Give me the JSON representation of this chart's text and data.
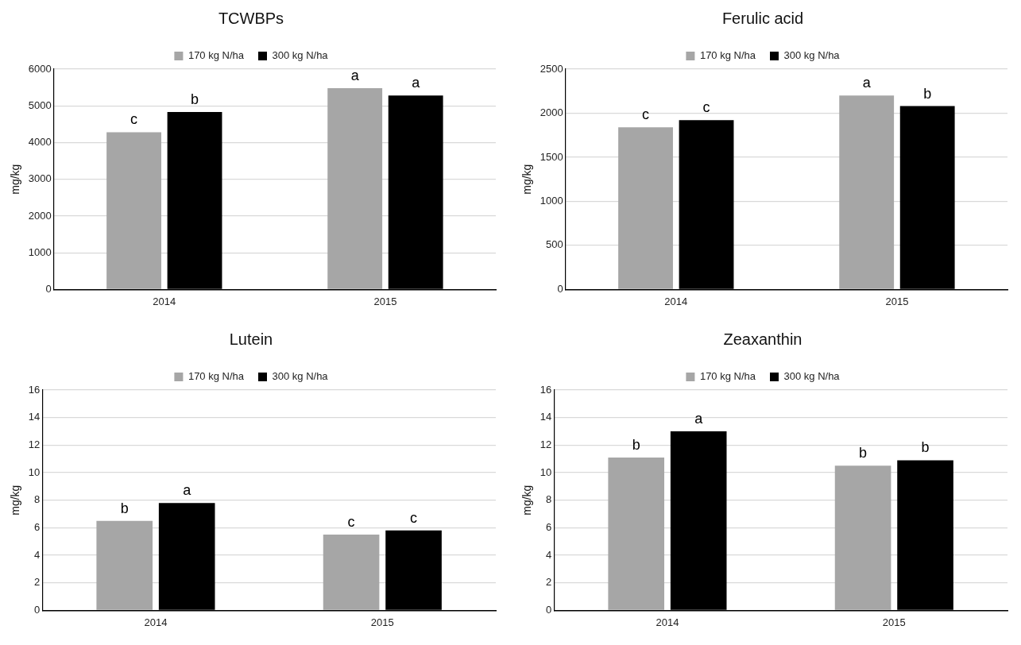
{
  "chart_data": [
    {
      "type": "bar",
      "title": "TCWBPs",
      "ylabel": "mg/kg",
      "categories": [
        "2014",
        "2015"
      ],
      "series": [
        {
          "name": "170 kg N/ha",
          "color": "#a6a6a6",
          "values": [
            4280,
            5480
          ]
        },
        {
          "name": "300 kg N/ha",
          "color": "#000000",
          "values": [
            4830,
            5280
          ]
        }
      ],
      "ylim": [
        0,
        6000
      ],
      "yticks": [
        0,
        1000,
        2000,
        3000,
        4000,
        5000,
        6000
      ],
      "grid": "y",
      "legend": "top",
      "annotations": [
        {
          "text": "c",
          "x": "2014",
          "y": 4280
        },
        {
          "text": "b",
          "x": "2014",
          "y": 4830
        },
        {
          "text": "a",
          "x": "2015",
          "y": 5480
        },
        {
          "text": "a",
          "x": "2015",
          "y": 5280
        }
      ]
    },
    {
      "type": "bar",
      "title": "Ferulic acid",
      "ylabel": "mg/kg",
      "categories": [
        "2014",
        "2015"
      ],
      "series": [
        {
          "name": "170 kg N/ha",
          "color": "#a6a6a6",
          "values": [
            1840,
            2200
          ]
        },
        {
          "name": "300 kg N/ha",
          "color": "#000000",
          "values": [
            1920,
            2080
          ]
        }
      ],
      "ylim": [
        0,
        2500
      ],
      "yticks": [
        0,
        500,
        1000,
        1500,
        2000,
        2500
      ],
      "grid": "y",
      "legend": "top",
      "annotations": [
        {
          "text": "c",
          "x": "2014",
          "y": 1840
        },
        {
          "text": "c",
          "x": "2014",
          "y": 1920
        },
        {
          "text": "a",
          "x": "2015",
          "y": 2200
        },
        {
          "text": "b",
          "x": "2015",
          "y": 2080
        }
      ]
    },
    {
      "type": "bar",
      "title": "Lutein",
      "ylabel": "mg/kg",
      "categories": [
        "2014",
        "2015"
      ],
      "series": [
        {
          "name": "170 kg N/ha",
          "color": "#a6a6a6",
          "values": [
            6.5,
            5.5
          ]
        },
        {
          "name": "300 kg N/ha",
          "color": "#000000",
          "values": [
            7.8,
            5.8
          ]
        }
      ],
      "ylim": [
        0,
        16
      ],
      "yticks": [
        0,
        2,
        4,
        6,
        8,
        10,
        12,
        14,
        16
      ],
      "grid": "y",
      "legend": "top",
      "annotations": [
        {
          "text": "b",
          "x": "2014",
          "y": 6.5
        },
        {
          "text": "a",
          "x": "2014",
          "y": 7.8
        },
        {
          "text": "c",
          "x": "2015",
          "y": 5.5
        },
        {
          "text": "c",
          "x": "2015",
          "y": 5.8
        }
      ]
    },
    {
      "type": "bar",
      "title": "Zeaxanthin",
      "ylabel": "mg/kg",
      "categories": [
        "2014",
        "2015"
      ],
      "series": [
        {
          "name": "170 kg N/ha",
          "color": "#a6a6a6",
          "values": [
            11.1,
            10.5
          ]
        },
        {
          "name": "300 kg N/ha",
          "color": "#000000",
          "values": [
            13.0,
            10.9
          ]
        }
      ],
      "ylim": [
        0,
        16
      ],
      "yticks": [
        0,
        2,
        4,
        6,
        8,
        10,
        12,
        14,
        16
      ],
      "grid": "y",
      "legend": "top",
      "annotations": [
        {
          "text": "b",
          "x": "2014",
          "y": 11.1
        },
        {
          "text": "a",
          "x": "2014",
          "y": 13.0
        },
        {
          "text": "b",
          "x": "2015",
          "y": 10.5
        },
        {
          "text": "b",
          "x": "2015",
          "y": 10.9
        }
      ]
    }
  ]
}
